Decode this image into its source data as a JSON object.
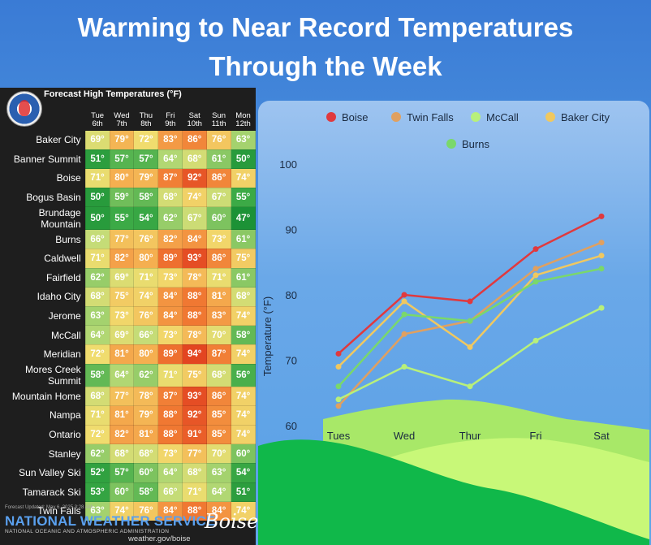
{
  "header": {
    "title_line1": "Warming to Near Record Temperatures",
    "title_line2": "Through the Week"
  },
  "table": {
    "title": "Forecast High Temperatures (°F)",
    "days": [
      {
        "day": "Tue",
        "date": "6th"
      },
      {
        "day": "Wed",
        "date": "7th"
      },
      {
        "day": "Thu",
        "date": "8th"
      },
      {
        "day": "Fri",
        "date": "9th"
      },
      {
        "day": "Sat",
        "date": "10th"
      },
      {
        "day": "Sun",
        "date": "11th"
      },
      {
        "day": "Mon",
        "date": "12th"
      }
    ],
    "rows": [
      {
        "name": "Baker City",
        "temps": [
          "69°",
          "79°",
          "72°",
          "83°",
          "86°",
          "76°",
          "63°"
        ]
      },
      {
        "name": "Banner Summit",
        "temps": [
          "51°",
          "57°",
          "57°",
          "64°",
          "68°",
          "61°",
          "50°"
        ]
      },
      {
        "name": "Boise",
        "temps": [
          "71°",
          "80°",
          "79°",
          "87°",
          "92°",
          "86°",
          "74°"
        ]
      },
      {
        "name": "Bogus Basin",
        "temps": [
          "50°",
          "59°",
          "58°",
          "68°",
          "74°",
          "67°",
          "55°"
        ]
      },
      {
        "name": "Brundage Mountain",
        "temps": [
          "50°",
          "55°",
          "54°",
          "62°",
          "67°",
          "60°",
          "47°"
        ]
      },
      {
        "name": "Burns",
        "temps": [
          "66°",
          "77°",
          "76°",
          "82°",
          "84°",
          "73°",
          "61°"
        ]
      },
      {
        "name": "Caldwell",
        "temps": [
          "71°",
          "82°",
          "80°",
          "89°",
          "93°",
          "86°",
          "75°"
        ]
      },
      {
        "name": "Fairfield",
        "temps": [
          "62°",
          "69°",
          "71°",
          "73°",
          "78°",
          "71°",
          "61°"
        ]
      },
      {
        "name": "Idaho City",
        "temps": [
          "68°",
          "75°",
          "74°",
          "84°",
          "88°",
          "81°",
          "68°"
        ]
      },
      {
        "name": "Jerome",
        "temps": [
          "63°",
          "73°",
          "76°",
          "84°",
          "88°",
          "83°",
          "74°"
        ]
      },
      {
        "name": "McCall",
        "temps": [
          "64°",
          "69°",
          "66°",
          "73°",
          "78°",
          "70°",
          "58°"
        ]
      },
      {
        "name": "Meridian",
        "temps": [
          "72°",
          "81°",
          "80°",
          "89°",
          "94°",
          "87°",
          "74°"
        ]
      },
      {
        "name": "Mores Creek Summit",
        "temps": [
          "58°",
          "64°",
          "62°",
          "71°",
          "75°",
          "68°",
          "56°"
        ]
      },
      {
        "name": "Mountain Home",
        "temps": [
          "68°",
          "77°",
          "78°",
          "87°",
          "93°",
          "86°",
          "74°"
        ]
      },
      {
        "name": "Nampa",
        "temps": [
          "71°",
          "81°",
          "79°",
          "88°",
          "92°",
          "85°",
          "74°"
        ]
      },
      {
        "name": "Ontario",
        "temps": [
          "72°",
          "82°",
          "81°",
          "88°",
          "91°",
          "85°",
          "74°"
        ]
      },
      {
        "name": "Stanley",
        "temps": [
          "62°",
          "68°",
          "68°",
          "73°",
          "77°",
          "70°",
          "60°"
        ]
      },
      {
        "name": "Sun Valley Ski",
        "temps": [
          "52°",
          "57°",
          "60°",
          "64°",
          "68°",
          "63°",
          "54°"
        ]
      },
      {
        "name": "Tamarack Ski",
        "temps": [
          "53°",
          "60°",
          "58°",
          "66°",
          "71°",
          "64°",
          "51°"
        ]
      },
      {
        "name": "Twin Falls",
        "temps": [
          "63°",
          "74°",
          "76°",
          "84°",
          "88°",
          "84°",
          "74°"
        ]
      }
    ],
    "updated": "Forecast Updated: May 6, 2025 3:28 AM",
    "agency": "NATIONAL WEATHER SERVICE",
    "agency_sub": "NATIONAL OCEANIC AND ATMOSPHERIC ADMINISTRATION",
    "url": "weather.gov/boise",
    "office": "Boise"
  },
  "chart_data": {
    "type": "line",
    "categories": [
      "Tues",
      "Wed",
      "Thur",
      "Fri",
      "Sat"
    ],
    "ylabel": "Temperature (°F)",
    "ylim": [
      60,
      100
    ],
    "yticks": [
      "60",
      "70",
      "80",
      "90",
      "100"
    ],
    "grid": false,
    "legend": "top",
    "series": [
      {
        "name": "Boise",
        "color": "#e0393e",
        "values": [
          71,
          80,
          79,
          87,
          92
        ]
      },
      {
        "name": "Twin Falls",
        "color": "#e0a060",
        "values": [
          63,
          74,
          76,
          84,
          88
        ]
      },
      {
        "name": "McCall",
        "color": "#b8f07a",
        "values": [
          64,
          69,
          66,
          73,
          78
        ]
      },
      {
        "name": "Baker City",
        "color": "#f0c860",
        "values": [
          69,
          79,
          72,
          83,
          86
        ]
      },
      {
        "name": "Burns",
        "color": "#7ad86a",
        "values": [
          66,
          77,
          76,
          82,
          84
        ]
      }
    ]
  }
}
